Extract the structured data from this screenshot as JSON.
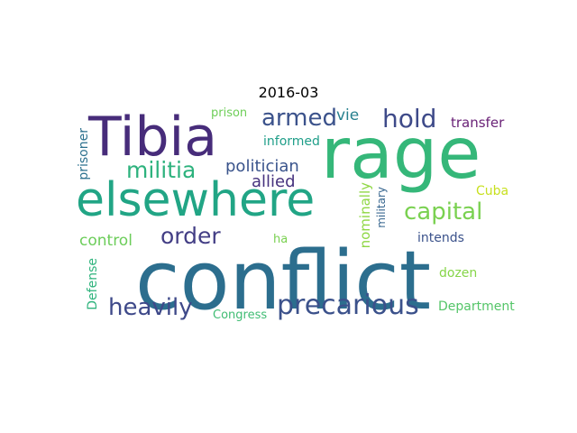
{
  "figure": {
    "title": "2016-03"
  },
  "word_cloud": {
    "words": [
      {
        "text": "conflict",
        "color": "#2c6e8e"
      },
      {
        "text": "rage",
        "color": "#35b779"
      },
      {
        "text": "elsewhere",
        "color": "#21a585"
      },
      {
        "text": "Tibia",
        "color": "#472c7a"
      },
      {
        "text": "precarious",
        "color": "#3b518b"
      },
      {
        "text": "militia",
        "color": "#2db27d"
      },
      {
        "text": "capital",
        "color": "#7ad151"
      },
      {
        "text": "hold",
        "color": "#3e4a89"
      },
      {
        "text": "armed",
        "color": "#3b528b"
      },
      {
        "text": "order",
        "color": "#433e85"
      },
      {
        "text": "heavily",
        "color": "#3e4989"
      },
      {
        "text": "politician",
        "color": "#3a548c"
      },
      {
        "text": "allied",
        "color": "#46327e"
      },
      {
        "text": "nominally",
        "color": "#8fd744"
      },
      {
        "text": "control",
        "color": "#6ccd5a"
      },
      {
        "text": "vie",
        "color": "#27808e"
      },
      {
        "text": "informed",
        "color": "#1f9e89"
      },
      {
        "text": "prisoner",
        "color": "#2c718e"
      },
      {
        "text": "Defense",
        "color": "#2eb37c"
      },
      {
        "text": "military",
        "color": "#33638d"
      },
      {
        "text": "transfer",
        "color": "#6a2277"
      },
      {
        "text": "prison",
        "color": "#6ece58"
      },
      {
        "text": "Congress",
        "color": "#3fbc73"
      },
      {
        "text": "Department",
        "color": "#54c568"
      },
      {
        "text": "Cuba",
        "color": "#c8e020"
      },
      {
        "text": "ha",
        "color": "#7ad151"
      },
      {
        "text": "intends",
        "color": "#3b528b"
      },
      {
        "text": "dozen",
        "color": "#86d549"
      }
    ]
  }
}
